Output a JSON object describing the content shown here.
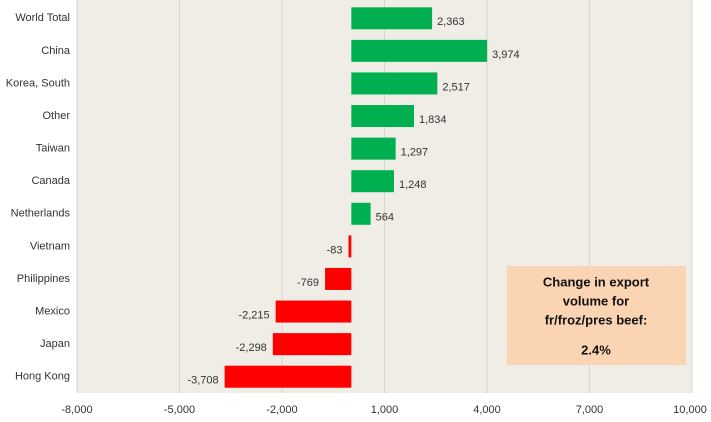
{
  "chart_data": {
    "type": "bar",
    "orientation": "horizontal",
    "categories": [
      "World Total",
      "China",
      "Korea, South",
      "Other",
      "Taiwan",
      "Canada",
      "Netherlands",
      "Vietnam",
      "Philippines",
      "Mexico",
      "Japan",
      "Hong Kong"
    ],
    "values": [
      2363,
      3974,
      2517,
      1834,
      1297,
      1248,
      564,
      -83,
      -769,
      -2215,
      -2298,
      -3708
    ],
    "value_labels": [
      "2,363",
      "3,974",
      "2,517",
      "1,834",
      "1,297",
      "1,248",
      "564",
      "-83",
      "-769",
      "-2,215",
      "-2,298",
      "-3,708"
    ],
    "color": "#00b050",
    "negative_color": "#ff0000",
    "xlim": [
      -8000,
      10000
    ],
    "xticks": [
      {
        "value": -8000,
        "label": "-8,000"
      },
      {
        "value": -5000,
        "label": "-5,000"
      },
      {
        "value": -2000,
        "label": "-2,000"
      },
      {
        "value": 1000,
        "label": "1,000"
      },
      {
        "value": 4000,
        "label": "4,000"
      },
      {
        "value": 7000,
        "label": "7,000"
      },
      {
        "value": 10000,
        "label": "10,000"
      }
    ],
    "grid": true,
    "annotation": {
      "lines": [
        "Change in export",
        "volume for",
        "fr/froz/pres beef:"
      ],
      "value": "2.4%"
    }
  }
}
